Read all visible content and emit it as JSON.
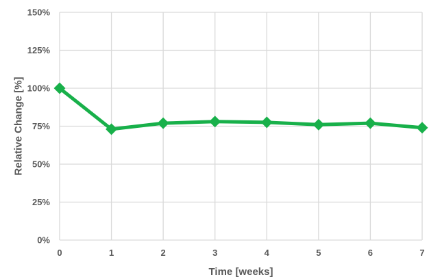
{
  "chart_data": {
    "type": "line",
    "xlabel": "Time [weeks]",
    "ylabel": "Relative Change [%]",
    "x": [
      0,
      1,
      2,
      3,
      4,
      5,
      6,
      7
    ],
    "x_ticks": [
      "0",
      "1",
      "2",
      "3",
      "4",
      "5",
      "6",
      "7"
    ],
    "y_ticks": [
      "0%",
      "25%",
      "50%",
      "75%",
      "100%",
      "125%",
      "150%"
    ],
    "xlim": [
      0,
      7
    ],
    "ylim": [
      0,
      150
    ],
    "grid": true,
    "series": [
      {
        "values": [
          100,
          73,
          77,
          78,
          77.5,
          76,
          77,
          74
        ],
        "color": "#18b04a",
        "marker": "diamond"
      }
    ]
  }
}
